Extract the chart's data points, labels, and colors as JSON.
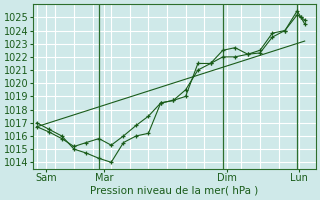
{
  "xlabel": "Pression niveau de la mer( hPa )",
  "ylim": [
    1013.5,
    1026.0
  ],
  "yticks": [
    1014,
    1015,
    1016,
    1017,
    1018,
    1019,
    1020,
    1021,
    1022,
    1023,
    1024,
    1025
  ],
  "bg_color": "#cfe9e9",
  "grid_color": "#ffffff",
  "line_color": "#1a5c1a",
  "series1_x": [
    0.0,
    0.33,
    0.67,
    1.0,
    1.33,
    1.67,
    2.0,
    2.33,
    2.67,
    3.0,
    3.33,
    3.67,
    4.0,
    4.33,
    4.67,
    5.0,
    5.33,
    5.67,
    6.0,
    6.33,
    6.67,
    7.0,
    7.1,
    7.2
  ],
  "series1_y": [
    1017.0,
    1016.5,
    1016.0,
    1015.0,
    1014.7,
    1014.3,
    1014.0,
    1015.5,
    1016.0,
    1016.2,
    1018.5,
    1018.7,
    1019.0,
    1021.5,
    1021.5,
    1022.5,
    1022.7,
    1022.2,
    1022.5,
    1023.8,
    1024.0,
    1025.5,
    1025.0,
    1024.8
  ],
  "series2_x": [
    0.0,
    0.33,
    0.67,
    1.0,
    1.33,
    1.67,
    2.0,
    2.33,
    2.67,
    3.0,
    3.33,
    3.67,
    4.0,
    4.33,
    4.67,
    5.0,
    5.33,
    5.67,
    6.0,
    6.33,
    6.67,
    7.0,
    7.1,
    7.2
  ],
  "series2_y": [
    1016.7,
    1016.3,
    1015.8,
    1015.2,
    1015.5,
    1015.8,
    1015.3,
    1016.0,
    1016.8,
    1017.5,
    1018.5,
    1018.7,
    1019.5,
    1021.0,
    1021.5,
    1022.0,
    1022.0,
    1022.2,
    1022.3,
    1023.5,
    1024.0,
    1025.2,
    1025.0,
    1024.5
  ],
  "series3_x": [
    0.0,
    7.2
  ],
  "series3_y": [
    1016.7,
    1023.2
  ],
  "vline_x": [
    1.67,
    5.0,
    7.0
  ],
  "xtick_positions": [
    0.25,
    1.8,
    5.1,
    7.05
  ],
  "xtick_labels": [
    "Sam",
    "Mar",
    "Dim",
    "Lun"
  ],
  "xlim": [
    -0.1,
    7.5
  ]
}
